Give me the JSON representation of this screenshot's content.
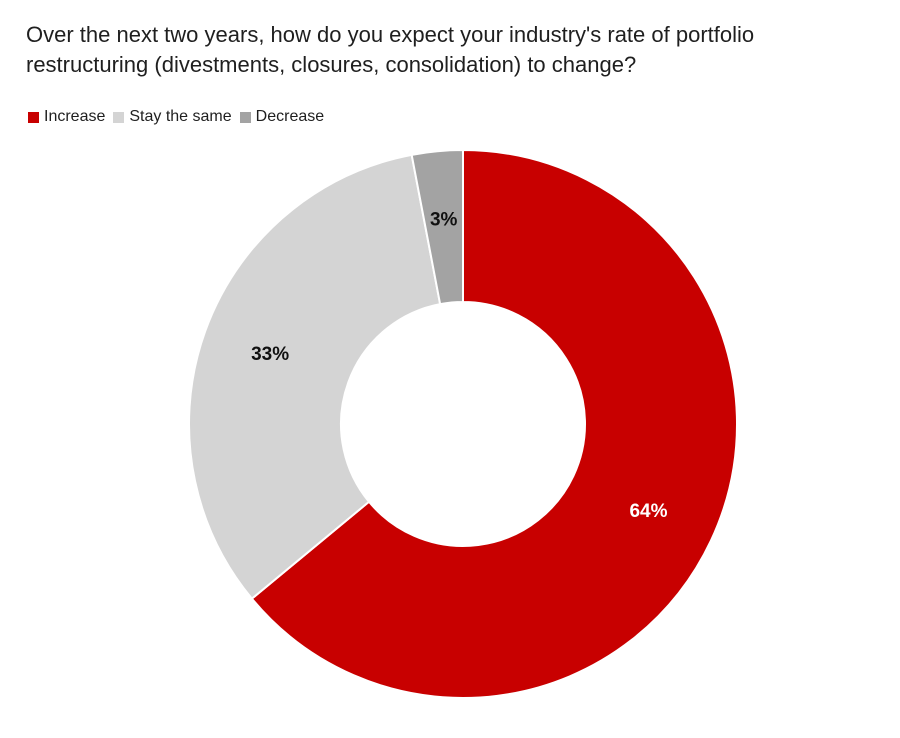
{
  "chart_data": {
    "type": "pie",
    "variant": "donut",
    "title_lines": [
      "Over the next two years, how do you expect your industry's rate of portfolio",
      "restructuring (divestments, closures, consolidation) to change?"
    ],
    "legend_position": "top-left",
    "categories": [
      "Increase",
      "Stay the same",
      "Decrease"
    ],
    "values": [
      64,
      33,
      3
    ],
    "colors": [
      "#c80000",
      "#d4d4d4",
      "#a3a3a3"
    ],
    "data_labels": [
      "64%",
      "33%",
      "3%"
    ],
    "label_colors": [
      "#ffffff",
      "#111111",
      "#111111"
    ],
    "start_angle_deg": 0,
    "direction": "clockwise"
  }
}
